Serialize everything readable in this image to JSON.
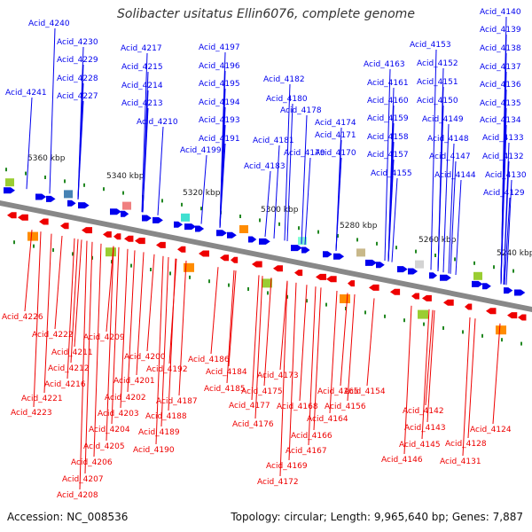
{
  "title": "Solibacter usitatus Ellin6076, complete genome",
  "accession": "Accession: NC_008536",
  "summary": "Topology: circular; Length: 9,965,640 bp; Genes: 7,887",
  "colors": {
    "forward": "#0000ee",
    "reverse": "#ee0000",
    "backbone": "#888888",
    "tick": "#228822"
  },
  "scale_labels": [
    "5360 kbp",
    "5340 kbp",
    "5320 kbp",
    "5300 kbp",
    "5280 kbp",
    "5260 kbp",
    "5240 kbp"
  ],
  "forward_genes": [
    "Acid_4240",
    "Acid_4230",
    "Acid_4229",
    "Acid_4228",
    "Acid_4227",
    "Acid_4241",
    "Acid_4217",
    "Acid_4215",
    "Acid_4214",
    "Acid_4213",
    "Acid_4210",
    "Acid_4197",
    "Acid_4196",
    "Acid_4195",
    "Acid_4194",
    "Acid_4193",
    "Acid_4191",
    "Acid_4199",
    "Acid_4182",
    "Acid_4180",
    "Acid_4178",
    "Acid_4174",
    "Acid_4181",
    "Acid_4179",
    "Acid_4171",
    "Acid_4183",
    "Acid_4170",
    "Acid_4163",
    "Acid_4161",
    "Acid_4160",
    "Acid_4159",
    "Acid_4158",
    "Acid_4157",
    "Acid_4155",
    "Acid_4153",
    "Acid_4152",
    "Acid_4151",
    "Acid_4150",
    "Acid_4149",
    "Acid_4148",
    "Acid_4147",
    "Acid_4144",
    "Acid_4140",
    "Acid_4139",
    "Acid_4138",
    "Acid_4137",
    "Acid_4136",
    "Acid_4135",
    "Acid_4134",
    "Acid_4133",
    "Acid_4132",
    "Acid_4130",
    "Acid_4129"
  ],
  "reverse_genes": [
    "Acid_4226",
    "Acid_4222",
    "Acid_4211",
    "Acid_4212",
    "Acid_4216",
    "Acid_4221",
    "Acid_4223",
    "Acid_4209",
    "Acid_4200",
    "Acid_4192",
    "Acid_4201",
    "Acid_4202",
    "Acid_4203",
    "Acid_4204",
    "Acid_4205",
    "Acid_4206",
    "Acid_4207",
    "Acid_4208",
    "Acid_4186",
    "Acid_4184",
    "Acid_4185",
    "Acid_4187",
    "Acid_4188",
    "Acid_4189",
    "Acid_4190",
    "Acid_4173",
    "Acid_4175",
    "Acid_4177",
    "Acid_4176",
    "Acid_4165",
    "Acid_4168",
    "Acid_4164",
    "Acid_4166",
    "Acid_4167",
    "Acid_4169",
    "Acid_4172",
    "Acid_4154",
    "Acid_4156",
    "Acid_4142",
    "Acid_4143",
    "Acid_4145",
    "Acid_4146",
    "Acid_4131",
    "Acid_4128",
    "Acid_4124"
  ]
}
